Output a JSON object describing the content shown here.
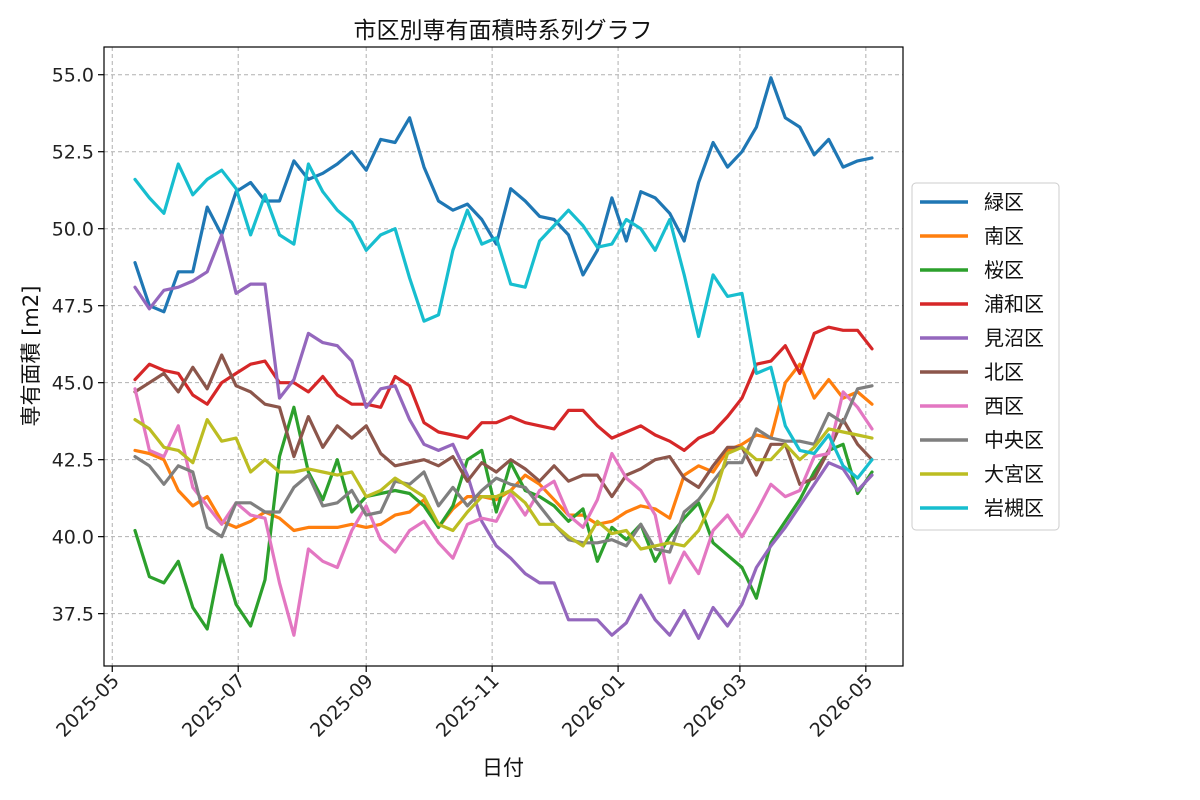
{
  "chart_data": {
    "type": "line",
    "title": "市区別専有面積時系列グラフ",
    "xlabel": "日付",
    "ylabel": "専有面積 [m2]",
    "ylim": [
      35.8,
      55.9
    ],
    "xlim": [
      "2025-04-27",
      "2026-05-19"
    ],
    "yticks": [
      "37.5",
      "40.0",
      "42.5",
      "45.0",
      "47.5",
      "50.0",
      "52.5",
      "55.0"
    ],
    "xticks": [
      "2025-05",
      "2025-07",
      "2025-09",
      "2025-11",
      "2026-01",
      "2026-03",
      "2026-05"
    ],
    "grid": true,
    "legend_position": "right",
    "start_date": "2025-05-12",
    "interval_days": 7,
    "series": [
      {
        "name": "緑区",
        "color": "#1f77b4",
        "values": [
          48.9,
          47.5,
          47.3,
          48.6,
          48.6,
          50.7,
          49.8,
          51.2,
          51.5,
          50.9,
          50.9,
          52.2,
          51.6,
          51.8,
          52.1,
          52.5,
          51.9,
          52.9,
          52.8,
          53.6,
          52.0,
          50.9,
          50.6,
          50.8,
          50.3,
          49.5,
          51.3,
          50.9,
          50.4,
          50.3,
          49.8,
          48.5,
          49.3,
          51.0,
          49.6,
          51.2,
          51.0,
          50.5,
          49.6,
          51.5,
          52.8,
          52.0,
          52.5,
          53.3,
          54.9,
          53.6,
          53.3,
          52.4,
          52.9,
          52.0,
          52.2,
          52.3
        ]
      },
      {
        "name": "南区",
        "color": "#ff7f0e",
        "values": [
          42.8,
          42.7,
          42.5,
          41.5,
          41.0,
          41.3,
          40.5,
          40.3,
          40.5,
          40.8,
          40.6,
          40.2,
          40.3,
          40.3,
          40.3,
          40.4,
          40.3,
          40.4,
          40.7,
          40.8,
          41.2,
          40.3,
          40.9,
          41.3,
          41.3,
          41.2,
          41.5,
          42.0,
          41.7,
          41.2,
          40.7,
          40.7,
          40.4,
          40.5,
          40.8,
          41.0,
          40.9,
          40.6,
          42.0,
          42.3,
          42.1,
          42.8,
          43.0,
          43.3,
          43.2,
          45.0,
          45.6,
          44.5,
          45.1,
          44.5,
          44.7,
          44.3
        ]
      },
      {
        "name": "桜区",
        "color": "#2ca02c",
        "values": [
          40.2,
          38.7,
          38.5,
          39.2,
          37.7,
          37.0,
          39.4,
          37.8,
          37.1,
          38.6,
          42.6,
          44.2,
          42.1,
          41.2,
          42.5,
          40.8,
          41.3,
          41.4,
          41.5,
          41.4,
          41.0,
          40.3,
          41.0,
          42.5,
          42.8,
          40.8,
          42.4,
          41.5,
          41.3,
          41.0,
          40.5,
          40.9,
          39.2,
          40.3,
          39.9,
          40.4,
          39.2,
          40.0,
          40.6,
          41.1,
          39.8,
          39.4,
          39.0,
          38.0,
          39.8,
          40.5,
          41.2,
          42.1,
          42.8,
          43.0,
          41.4,
          42.1
        ]
      },
      {
        "name": "浦和区",
        "color": "#d62728",
        "values": [
          45.1,
          45.6,
          45.4,
          45.3,
          44.6,
          44.3,
          45.0,
          45.3,
          45.6,
          45.7,
          45.0,
          45.0,
          44.7,
          45.2,
          44.6,
          44.3,
          44.3,
          44.2,
          45.2,
          44.9,
          43.7,
          43.4,
          43.3,
          43.2,
          43.7,
          43.7,
          43.9,
          43.7,
          43.6,
          43.5,
          44.1,
          44.1,
          43.6,
          43.2,
          43.4,
          43.6,
          43.3,
          43.1,
          42.8,
          43.2,
          43.4,
          43.9,
          44.5,
          45.6,
          45.7,
          46.2,
          45.3,
          46.6,
          46.8,
          46.7,
          46.7,
          46.1
        ]
      },
      {
        "name": "見沼区",
        "color": "#9467bd",
        "values": [
          48.1,
          47.4,
          48.0,
          48.1,
          48.3,
          48.6,
          49.8,
          47.9,
          48.2,
          48.2,
          44.5,
          45.1,
          46.6,
          46.3,
          46.2,
          45.7,
          44.2,
          44.8,
          44.9,
          43.8,
          43.0,
          42.8,
          43.0,
          42.0,
          40.5,
          39.7,
          39.3,
          38.8,
          38.5,
          38.5,
          37.3,
          37.3,
          37.3,
          36.8,
          37.2,
          38.1,
          37.3,
          36.8,
          37.6,
          36.7,
          37.7,
          37.1,
          37.8,
          39.0,
          39.7,
          40.3,
          41.0,
          41.7,
          42.4,
          42.2,
          41.5,
          42.0
        ]
      },
      {
        "name": "北区",
        "color": "#8c564b",
        "values": [
          44.7,
          45.0,
          45.3,
          44.7,
          45.5,
          44.8,
          45.9,
          44.9,
          44.7,
          44.3,
          44.2,
          42.6,
          43.9,
          42.9,
          43.6,
          43.2,
          43.6,
          42.7,
          42.3,
          42.4,
          42.5,
          42.3,
          42.6,
          41.8,
          42.4,
          42.1,
          42.5,
          42.2,
          41.8,
          42.3,
          41.8,
          42.0,
          42.0,
          41.3,
          42.0,
          42.2,
          42.5,
          42.6,
          41.9,
          41.6,
          42.3,
          42.9,
          42.9,
          42.0,
          43.0,
          43.0,
          41.7,
          41.9,
          42.8,
          43.8,
          43.0,
          42.5
        ]
      },
      {
        "name": "西区",
        "color": "#e377c2",
        "values": [
          44.8,
          42.8,
          42.6,
          43.6,
          41.6,
          41.0,
          40.4,
          41.1,
          40.7,
          40.6,
          38.5,
          36.8,
          39.6,
          39.2,
          39.0,
          40.2,
          41.0,
          39.9,
          39.5,
          40.2,
          40.5,
          39.8,
          39.3,
          40.4,
          40.6,
          40.5,
          41.4,
          40.7,
          41.5,
          41.8,
          40.7,
          40.3,
          41.2,
          42.7,
          41.9,
          41.5,
          40.7,
          38.5,
          39.5,
          38.8,
          40.2,
          40.7,
          40.0,
          40.8,
          41.7,
          41.3,
          41.5,
          42.6,
          42.7,
          44.7,
          44.2,
          43.5
        ]
      },
      {
        "name": "中央区",
        "color": "#7f7f7f",
        "values": [
          42.6,
          42.3,
          41.7,
          42.3,
          42.1,
          40.3,
          40.0,
          41.1,
          41.1,
          40.8,
          40.8,
          41.6,
          42.0,
          41.0,
          41.1,
          41.5,
          40.7,
          40.8,
          41.8,
          41.7,
          42.1,
          41.0,
          41.6,
          41.0,
          41.5,
          41.9,
          41.7,
          41.6,
          41.0,
          40.4,
          39.9,
          39.8,
          39.8,
          39.9,
          39.7,
          40.4,
          39.6,
          39.5,
          40.8,
          41.2,
          41.8,
          42.4,
          42.4,
          43.5,
          43.2,
          43.1,
          43.1,
          43.0,
          44.0,
          43.7,
          44.8,
          44.9
        ]
      },
      {
        "name": "大宮区",
        "color": "#bcbd22",
        "values": [
          43.8,
          43.5,
          42.9,
          42.8,
          42.4,
          43.8,
          43.1,
          43.2,
          42.1,
          42.5,
          42.1,
          42.1,
          42.2,
          42.1,
          42.0,
          42.1,
          41.3,
          41.5,
          41.9,
          41.6,
          41.3,
          40.4,
          40.2,
          40.8,
          41.3,
          41.3,
          41.5,
          41.1,
          40.4,
          40.4,
          40.0,
          39.7,
          40.5,
          40.1,
          40.2,
          39.6,
          39.7,
          39.8,
          39.7,
          40.2,
          41.2,
          42.7,
          42.9,
          42.5,
          42.5,
          43.0,
          42.5,
          42.9,
          43.5,
          43.4,
          43.3,
          43.2
        ]
      },
      {
        "name": "岩槻区",
        "color": "#17becf",
        "values": [
          51.6,
          51.0,
          50.5,
          52.1,
          51.1,
          51.6,
          51.9,
          51.3,
          49.8,
          51.1,
          49.8,
          49.5,
          52.1,
          51.2,
          50.6,
          50.2,
          49.3,
          49.8,
          50.0,
          48.4,
          47.0,
          47.2,
          49.3,
          50.6,
          49.5,
          49.7,
          48.2,
          48.1,
          49.6,
          50.1,
          50.6,
          50.1,
          49.4,
          49.5,
          50.3,
          50.0,
          49.3,
          50.3,
          48.5,
          46.5,
          48.5,
          47.8,
          47.9,
          45.3,
          45.5,
          43.6,
          42.8,
          42.7,
          43.3,
          42.3,
          41.9,
          42.5
        ]
      }
    ]
  }
}
